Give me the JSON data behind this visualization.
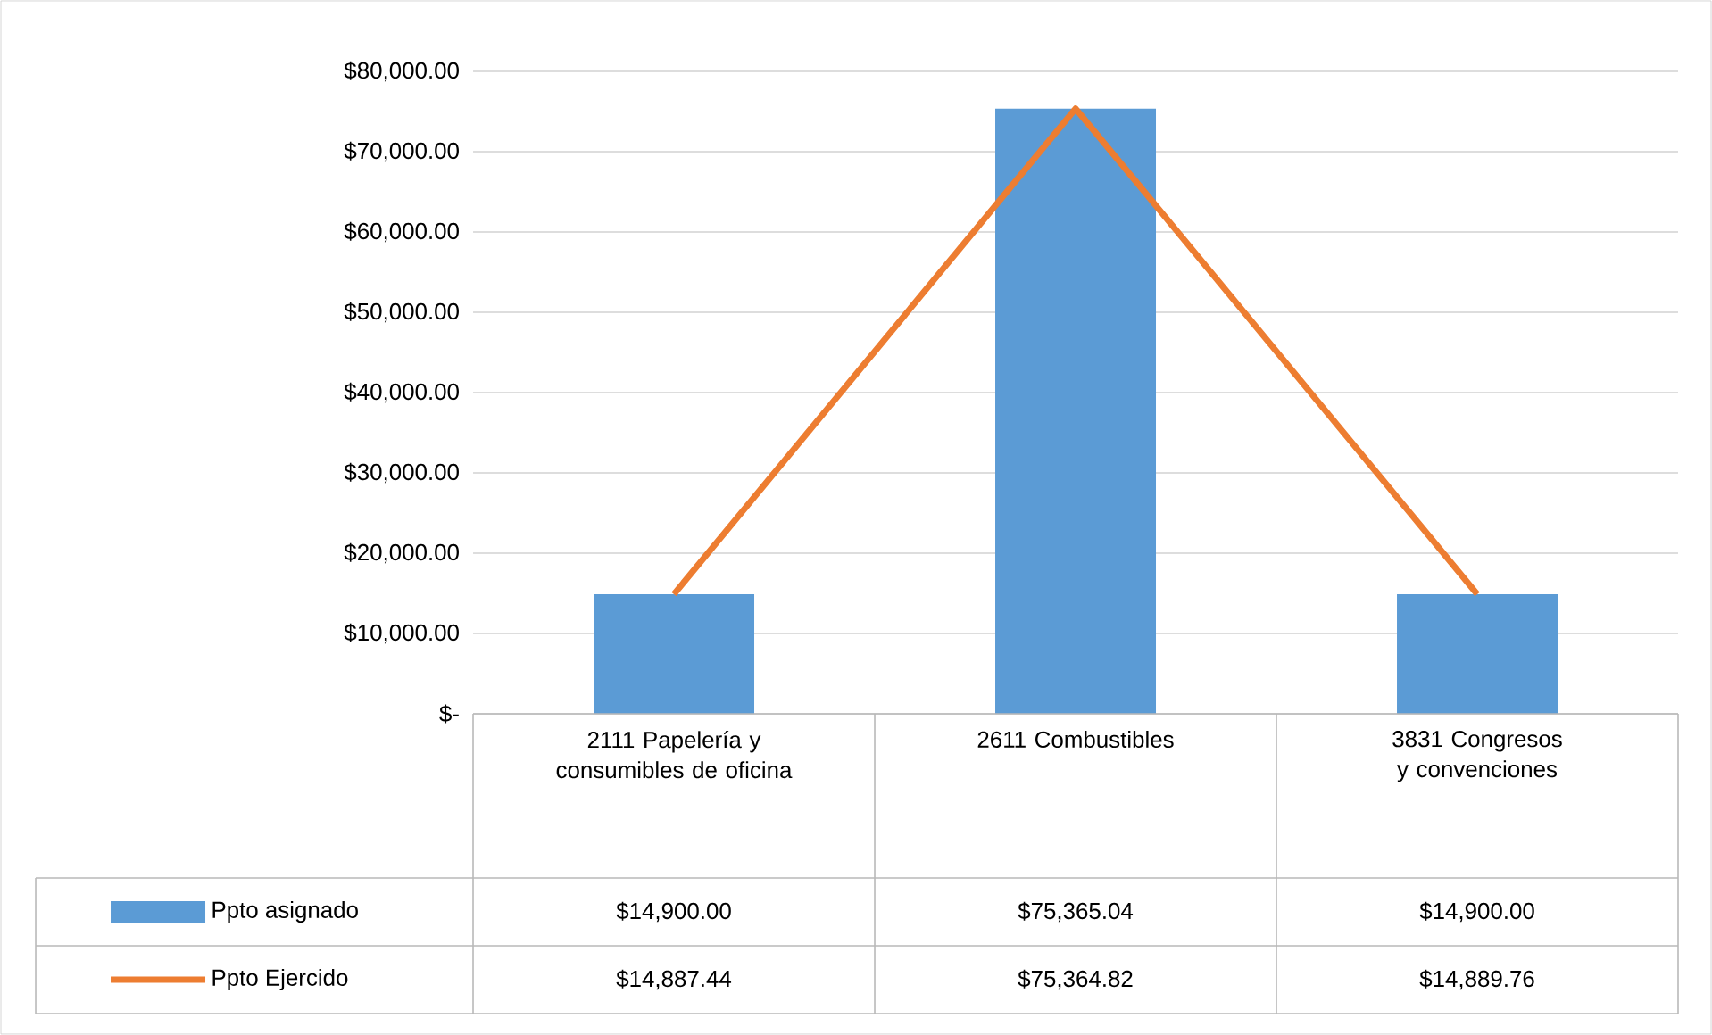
{
  "chart_data": {
    "type": "bar",
    "categories": [
      "2111 Papelería y consumibles de oficina",
      "2611 Combustibles",
      "3831 Congresos y convenciones"
    ],
    "series": [
      {
        "name": "Ppto asignado",
        "color": "#5b9bd5",
        "values": [
          14900.0,
          75365.04,
          14900.0
        ],
        "value_labels": [
          "$14,900.00",
          "$75,365.04",
          "$14,900.00"
        ]
      },
      {
        "name": "Ppto Ejercido",
        "type": "line",
        "color": "#ed7d31",
        "values": [
          14887.44,
          75364.82,
          14889.76
        ],
        "value_labels": [
          "$14,887.44",
          "$75,364.82",
          "$14,889.76"
        ]
      }
    ],
    "ylim": [
      0,
      80000
    ],
    "yticks": [
      {
        "value": 0,
        "label": "$-"
      },
      {
        "value": 10000,
        "label": "$10,000.00"
      },
      {
        "value": 20000,
        "label": "$20,000.00"
      },
      {
        "value": 30000,
        "label": "$30,000.00"
      },
      {
        "value": 40000,
        "label": "$40,000.00"
      },
      {
        "value": 50000,
        "label": "$50,000.00"
      },
      {
        "value": 60000,
        "label": "$60,000.00"
      },
      {
        "value": 70000,
        "label": "$70,000.00"
      },
      {
        "value": 80000,
        "label": "$80,000.00"
      }
    ],
    "grid": "y",
    "legend": "bottom left"
  }
}
